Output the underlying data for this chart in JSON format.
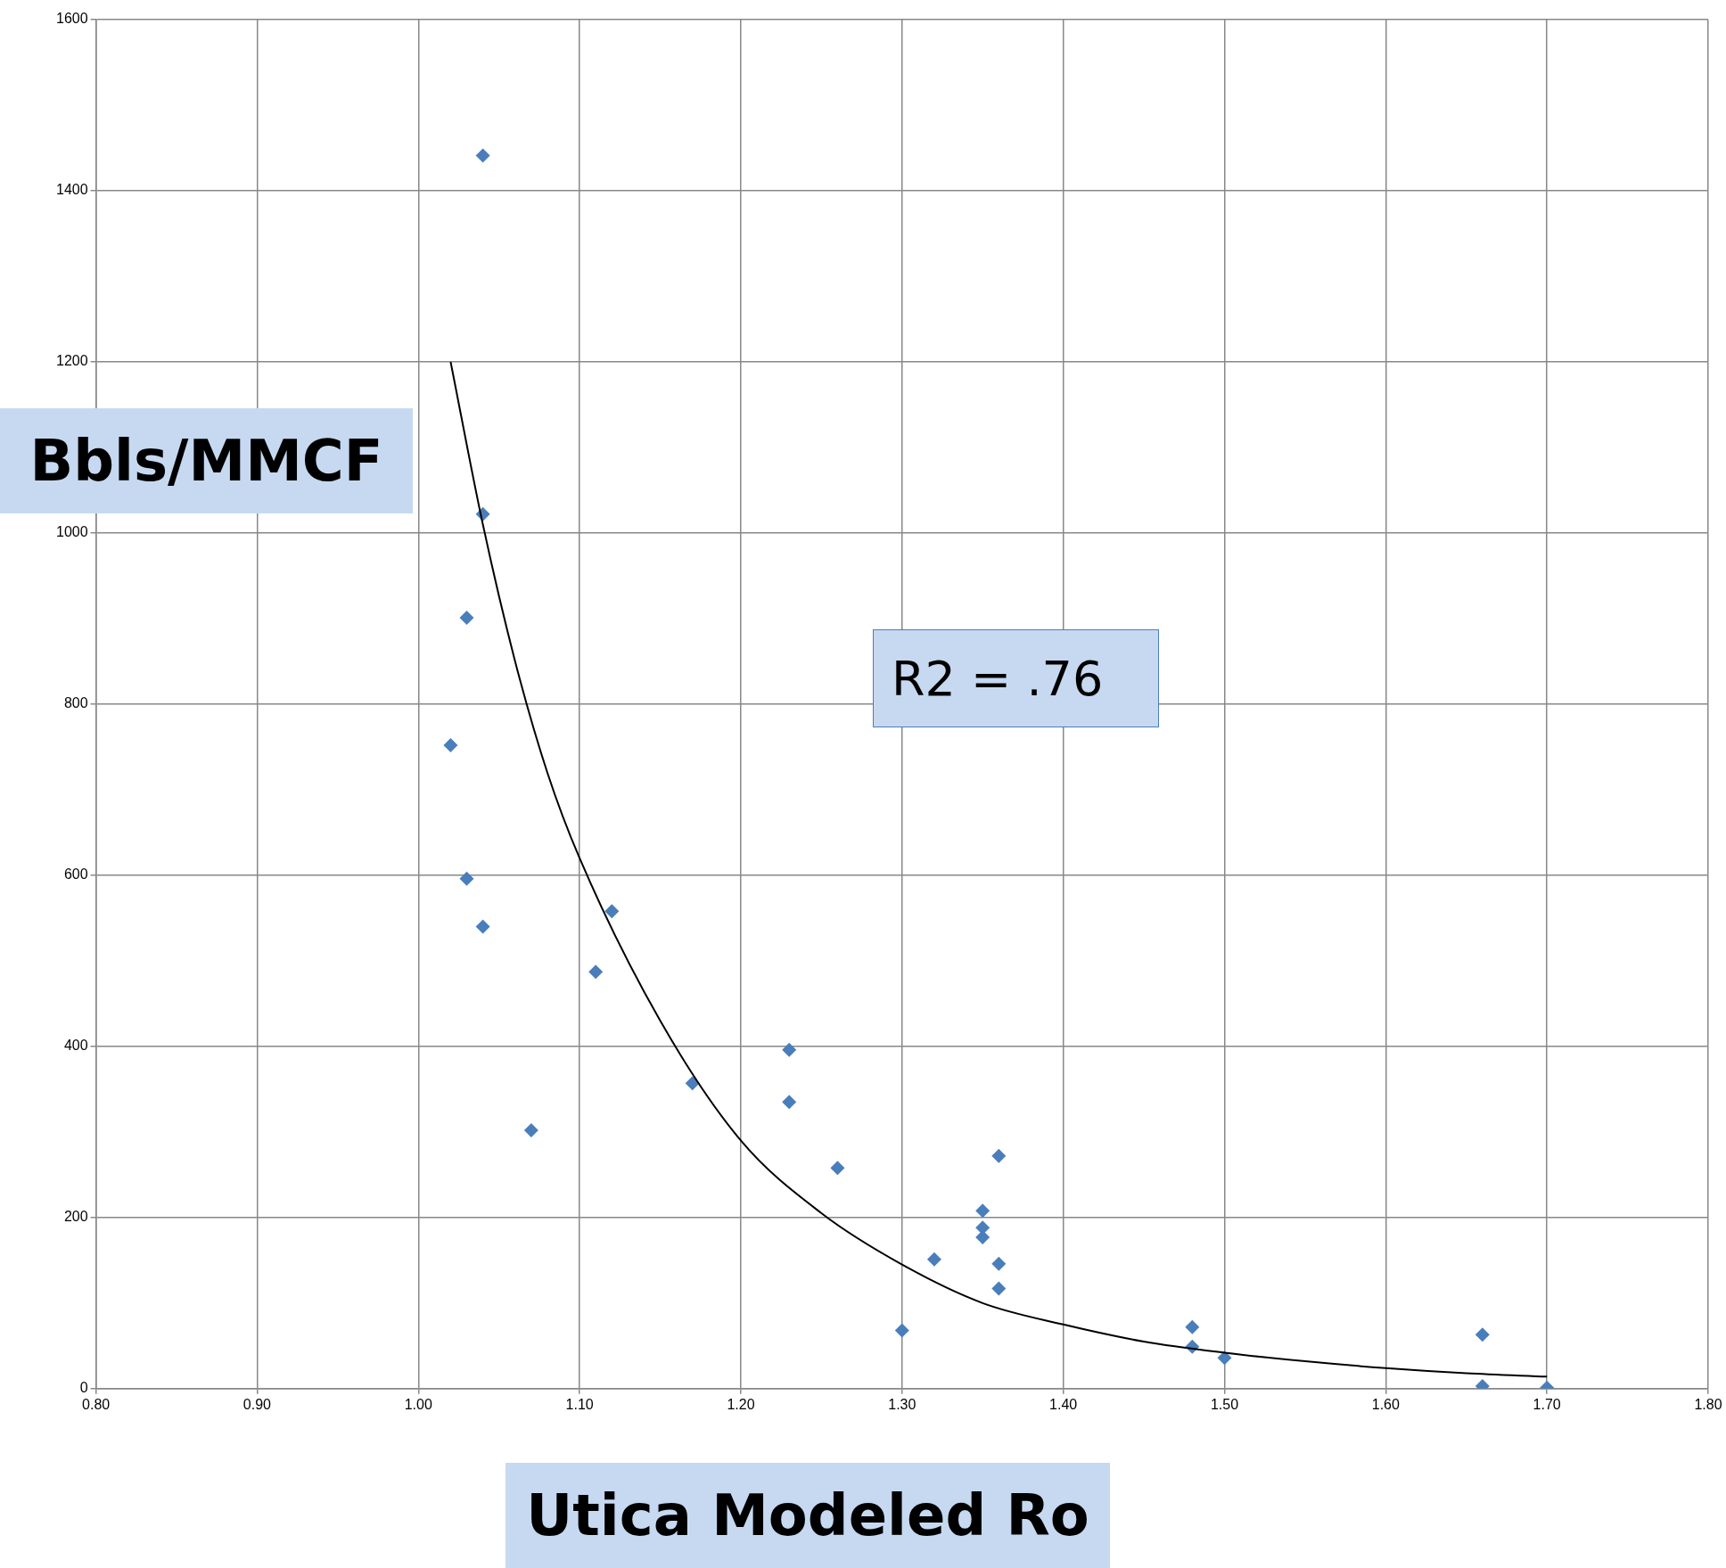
{
  "chart_data": {
    "type": "scatter",
    "xlabel": "Utica Modeled Ro",
    "ylabel": "Bbls/MMCF",
    "annotations": [
      "R2 = .76"
    ],
    "xlim": [
      0.8,
      1.8
    ],
    "xticks": [
      {
        "value": 0.8,
        "label": "0.80"
      },
      {
        "value": 0.9,
        "label": "0.90"
      },
      {
        "value": 1.0,
        "label": "1.00"
      },
      {
        "value": 1.1,
        "label": "1.10"
      },
      {
        "value": 1.2,
        "label": "1.20"
      },
      {
        "value": 1.3,
        "label": "1.30"
      },
      {
        "value": 1.4,
        "label": "1.40"
      },
      {
        "value": 1.5,
        "label": "1.50"
      },
      {
        "value": 1.6,
        "label": "1.60"
      },
      {
        "value": 1.7,
        "label": "1.70"
      },
      {
        "value": 1.8,
        "label": "1.80"
      }
    ],
    "ylim": [
      0,
      1600
    ],
    "yticks": [
      0,
      200,
      400,
      600,
      800,
      1000,
      1200,
      1400,
      1600
    ],
    "grid": true,
    "legend": false,
    "marker": "diamond",
    "series": [
      {
        "type": "scatter",
        "color": "#4a7ebb",
        "x": [
          1.04,
          1.04,
          1.03,
          1.02,
          1.03,
          1.04,
          1.07,
          1.11,
          1.12,
          1.17,
          1.23,
          1.23,
          1.26,
          1.3,
          1.32,
          1.35,
          1.35,
          1.35,
          1.36,
          1.36,
          1.36,
          1.48,
          1.48,
          1.5,
          1.66,
          1.66,
          1.7
        ],
        "values": [
          1441,
          1022,
          901,
          752,
          596,
          540,
          302,
          487,
          558,
          357,
          396,
          335,
          258,
          68,
          151,
          208,
          188,
          177,
          272,
          146,
          117,
          72,
          49,
          36,
          63,
          3,
          1
        ]
      },
      {
        "type": "line",
        "color": "#000000",
        "marker": "none",
        "x": [
          1.02,
          1.04,
          1.06,
          1.08,
          1.1,
          1.15,
          1.2,
          1.25,
          1.3,
          1.35,
          1.4,
          1.45,
          1.5,
          1.55,
          1.6,
          1.65,
          1.7
        ],
        "values": [
          1200,
          1010,
          850,
          720,
          620,
          430,
          290,
          205,
          145,
          100,
          75,
          55,
          42,
          32,
          24,
          18,
          14
        ]
      }
    ]
  }
}
